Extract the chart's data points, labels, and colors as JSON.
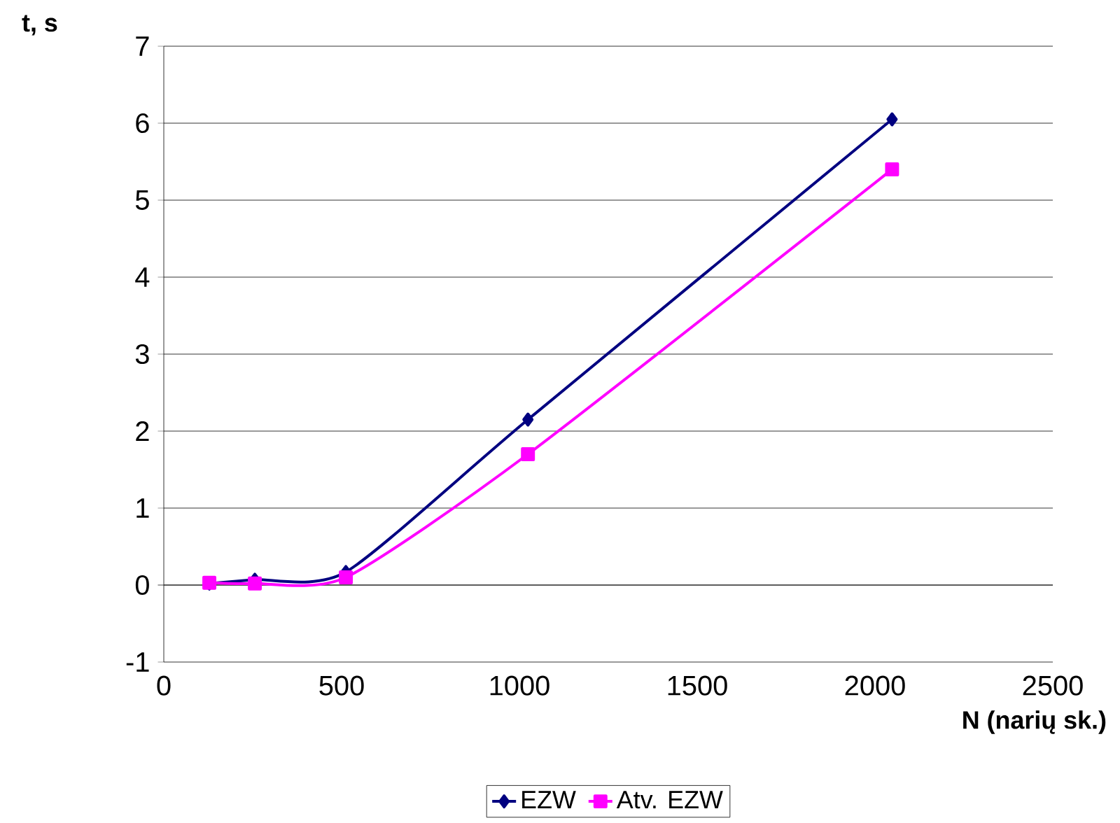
{
  "chart_data": {
    "type": "line",
    "xlabel": "N (narių sk.)",
    "ylabel": "t, s",
    "x": [
      128,
      256,
      512,
      1024,
      2048
    ],
    "series": [
      {
        "name": "EZW",
        "color": "#000080",
        "marker": "diamond",
        "values": [
          0.02,
          0.07,
          0.17,
          2.15,
          6.05
        ]
      },
      {
        "name": "Atv. EZW",
        "color": "#ff00ff",
        "marker": "square",
        "values": [
          0.03,
          0.02,
          0.1,
          1.7,
          5.4
        ]
      }
    ],
    "xlim": [
      0,
      2500
    ],
    "xticks": [
      0,
      500,
      1000,
      1500,
      2000,
      2500
    ],
    "ylim": [
      -1,
      7
    ],
    "yticks": [
      -1,
      0,
      1,
      2,
      3,
      4,
      5,
      6,
      7
    ],
    "grid": "y",
    "legend": "bottom"
  }
}
